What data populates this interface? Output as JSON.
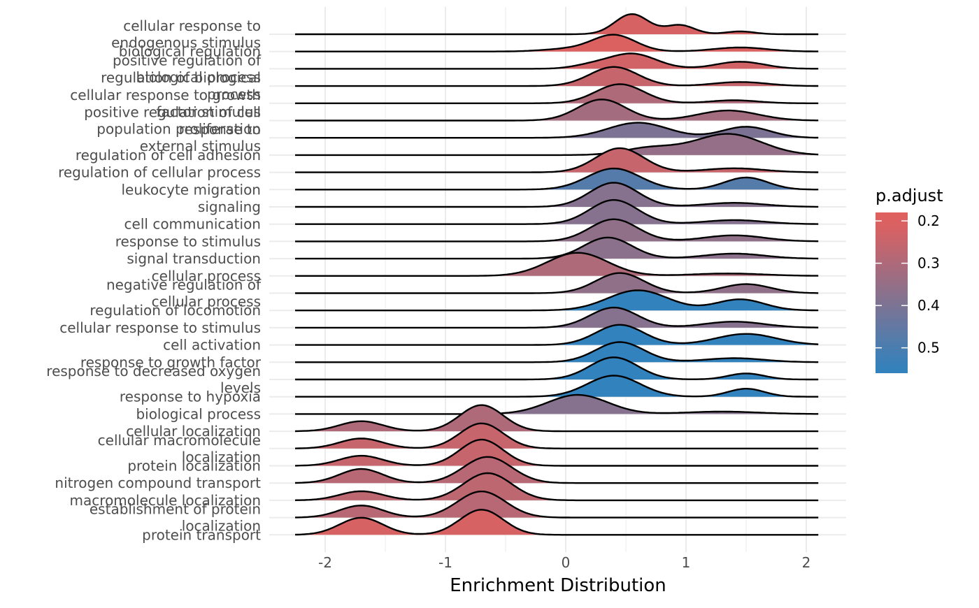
{
  "chart_data": {
    "type": "ridgeline",
    "xlabel": "Enrichment Distribution",
    "xlim": [
      -2.4,
      2.3
    ],
    "x_ticks": [
      -2,
      -1,
      0,
      1,
      2
    ],
    "x_tick_labels": [
      "-2",
      "-1",
      "0",
      "1",
      "2"
    ],
    "grid": true,
    "legend": {
      "title": "p.adjust",
      "position": "right",
      "range": [
        0.2,
        0.55
      ],
      "ticks": [
        0.2,
        0.3,
        0.4,
        0.5
      ],
      "tick_labels": [
        "0.2",
        "0.3",
        "0.4",
        "0.5"
      ],
      "color_low_p": "#e0605e",
      "color_high_p": "#3182bd"
    },
    "rows": [
      {
        "label": "cellular response to\nendogenous stimulus",
        "p_adjust": 0.22,
        "range": [
          -2.25,
          2.1
        ],
        "peaks": [
          [
            0.55,
            0.14,
            1.0
          ],
          [
            0.95,
            0.12,
            0.45
          ],
          [
            1.45,
            0.12,
            0.14
          ]
        ]
      },
      {
        "label": "biological regulation",
        "p_adjust": 0.21,
        "range": [
          -2.25,
          2.1
        ],
        "peaks": [
          [
            0.4,
            0.18,
            0.82
          ],
          [
            0.0,
            0.2,
            0.12
          ],
          [
            1.45,
            0.22,
            0.2
          ]
        ]
      },
      {
        "label": "positive regulation of\nbiological process",
        "p_adjust": 0.23,
        "range": [
          -2.25,
          2.1
        ],
        "peaks": [
          [
            0.55,
            0.2,
            0.75
          ],
          [
            0.2,
            0.15,
            0.15
          ],
          [
            1.45,
            0.2,
            0.35
          ]
        ]
      },
      {
        "label": "regulation of biological\nprocess",
        "p_adjust": 0.25,
        "range": [
          -2.25,
          2.1
        ],
        "peaks": [
          [
            0.4,
            0.2,
            0.95
          ],
          [
            1.45,
            0.22,
            0.2
          ]
        ]
      },
      {
        "label": "cellular response to growth\nfactor stimulus",
        "p_adjust": 0.3,
        "range": [
          -2.25,
          2.1
        ],
        "peaks": [
          [
            0.45,
            0.2,
            0.95
          ],
          [
            1.4,
            0.2,
            0.15
          ]
        ]
      },
      {
        "label": "positive regulation of cell\npopulation proliferation",
        "p_adjust": 0.32,
        "range": [
          -2.25,
          2.1
        ],
        "peaks": [
          [
            0.3,
            0.2,
            1.05
          ],
          [
            1.35,
            0.25,
            0.5
          ]
        ]
      },
      {
        "label": "response to\nexternal stimulus",
        "p_adjust": 0.4,
        "range": [
          -2.25,
          2.1
        ],
        "peaks": [
          [
            0.6,
            0.25,
            0.75
          ],
          [
            1.5,
            0.2,
            0.55
          ]
        ]
      },
      {
        "label": "regulation of cell adhesion",
        "p_adjust": 0.35,
        "range": [
          -2.25,
          2.1
        ],
        "peaks": [
          [
            1.35,
            0.28,
            1.05
          ],
          [
            0.7,
            0.22,
            0.35
          ]
        ]
      },
      {
        "label": "regulation of cellular process",
        "p_adjust": 0.25,
        "range": [
          -2.25,
          2.1
        ],
        "peaks": [
          [
            0.45,
            0.2,
            1.2
          ],
          [
            1.4,
            0.25,
            0.2
          ]
        ]
      },
      {
        "label": "leukocyte migration",
        "p_adjust": 0.48,
        "range": [
          -2.25,
          2.1
        ],
        "peaks": [
          [
            0.4,
            0.22,
            1.05
          ],
          [
            1.5,
            0.18,
            0.6
          ]
        ]
      },
      {
        "label": "signaling",
        "p_adjust": 0.38,
        "range": [
          -2.25,
          2.1
        ],
        "peaks": [
          [
            0.4,
            0.2,
            1.2
          ],
          [
            1.4,
            0.25,
            0.2
          ]
        ]
      },
      {
        "label": "cell communication",
        "p_adjust": 0.38,
        "range": [
          -2.25,
          2.1
        ],
        "peaks": [
          [
            0.4,
            0.2,
            1.2
          ],
          [
            1.4,
            0.25,
            0.2
          ]
        ]
      },
      {
        "label": "response to stimulus",
        "p_adjust": 0.36,
        "range": [
          -2.25,
          2.1
        ],
        "peaks": [
          [
            0.4,
            0.2,
            1.1
          ],
          [
            1.4,
            0.25,
            0.3
          ]
        ]
      },
      {
        "label": "signal transduction",
        "p_adjust": 0.37,
        "range": [
          -2.25,
          2.1
        ],
        "peaks": [
          [
            0.35,
            0.2,
            1.05
          ],
          [
            1.4,
            0.25,
            0.25
          ]
        ]
      },
      {
        "label": "cellular process",
        "p_adjust": 0.3,
        "range": [
          -2.25,
          2.1
        ],
        "peaks": [
          [
            0.1,
            0.25,
            1.15
          ],
          [
            1.35,
            0.3,
            0.12
          ]
        ]
      },
      {
        "label": "negative regulation of\ncellular process",
        "p_adjust": 0.36,
        "range": [
          -2.25,
          2.1
        ],
        "peaks": [
          [
            0.45,
            0.2,
            1.0
          ],
          [
            1.5,
            0.2,
            0.45
          ]
        ]
      },
      {
        "label": "regulation of locomotion",
        "p_adjust": 0.55,
        "range": [
          -2.25,
          2.1
        ],
        "peaks": [
          [
            0.6,
            0.25,
            1.0
          ],
          [
            1.45,
            0.2,
            0.55
          ]
        ]
      },
      {
        "label": "cellular response to stimulus",
        "p_adjust": 0.38,
        "range": [
          -2.25,
          2.1
        ],
        "peaks": [
          [
            0.4,
            0.2,
            1.0
          ],
          [
            1.4,
            0.25,
            0.3
          ]
        ]
      },
      {
        "label": "cell activation",
        "p_adjust": 0.55,
        "range": [
          -2.25,
          2.1
        ],
        "peaks": [
          [
            0.45,
            0.2,
            1.0
          ],
          [
            1.5,
            0.25,
            0.55
          ]
        ]
      },
      {
        "label": "response to growth factor",
        "p_adjust": 0.55,
        "range": [
          -2.25,
          2.1
        ],
        "peaks": [
          [
            0.45,
            0.2,
            1.0
          ],
          [
            1.4,
            0.25,
            0.2
          ]
        ]
      },
      {
        "label": "response to decreased oxygen\nlevels",
        "p_adjust": 0.55,
        "range": [
          -2.25,
          2.1
        ],
        "peaks": [
          [
            0.4,
            0.2,
            1.1
          ],
          [
            1.5,
            0.15,
            0.3
          ]
        ]
      },
      {
        "label": "response to hypoxia",
        "p_adjust": 0.55,
        "range": [
          -2.25,
          2.1
        ],
        "peaks": [
          [
            0.4,
            0.22,
            1.05
          ],
          [
            1.5,
            0.15,
            0.4
          ]
        ]
      },
      {
        "label": "biological process",
        "p_adjust": 0.38,
        "range": [
          -2.25,
          2.1
        ],
        "peaks": [
          [
            0.1,
            0.25,
            0.95
          ],
          [
            1.3,
            0.3,
            0.12
          ]
        ]
      },
      {
        "label": "cellular localization",
        "p_adjust": 0.3,
        "range": [
          -2.25,
          2.1
        ],
        "peaks": [
          [
            -0.7,
            0.18,
            1.3
          ],
          [
            -1.7,
            0.18,
            0.5
          ]
        ]
      },
      {
        "label": "cellular macromolecule\nlocalization",
        "p_adjust": 0.25,
        "range": [
          -2.25,
          2.1
        ],
        "peaks": [
          [
            -0.7,
            0.18,
            1.25
          ],
          [
            -1.7,
            0.18,
            0.5
          ]
        ]
      },
      {
        "label": "protein localization",
        "p_adjust": 0.25,
        "range": [
          -2.25,
          2.1
        ],
        "peaks": [
          [
            -0.7,
            0.18,
            1.3
          ],
          [
            -1.7,
            0.18,
            0.5
          ]
        ]
      },
      {
        "label": "nitrogen compound transport",
        "p_adjust": 0.28,
        "range": [
          -2.25,
          2.1
        ],
        "peaks": [
          [
            -0.65,
            0.2,
            1.3
          ],
          [
            -1.7,
            0.18,
            0.7
          ]
        ]
      },
      {
        "label": "macromolecule localization",
        "p_adjust": 0.27,
        "range": [
          -2.25,
          2.1
        ],
        "peaks": [
          [
            -0.65,
            0.2,
            1.35
          ],
          [
            -1.7,
            0.18,
            0.45
          ]
        ]
      },
      {
        "label": "establishment of protein\nlocalization",
        "p_adjust": 0.28,
        "range": [
          -2.25,
          2.1
        ],
        "peaks": [
          [
            -0.7,
            0.2,
            1.3
          ],
          [
            -1.7,
            0.18,
            0.6
          ]
        ]
      },
      {
        "label": "protein transport",
        "p_adjust": 0.22,
        "range": [
          -2.25,
          2.1
        ],
        "peaks": [
          [
            -0.7,
            0.18,
            1.25
          ],
          [
            -1.7,
            0.18,
            0.85
          ]
        ]
      }
    ]
  }
}
